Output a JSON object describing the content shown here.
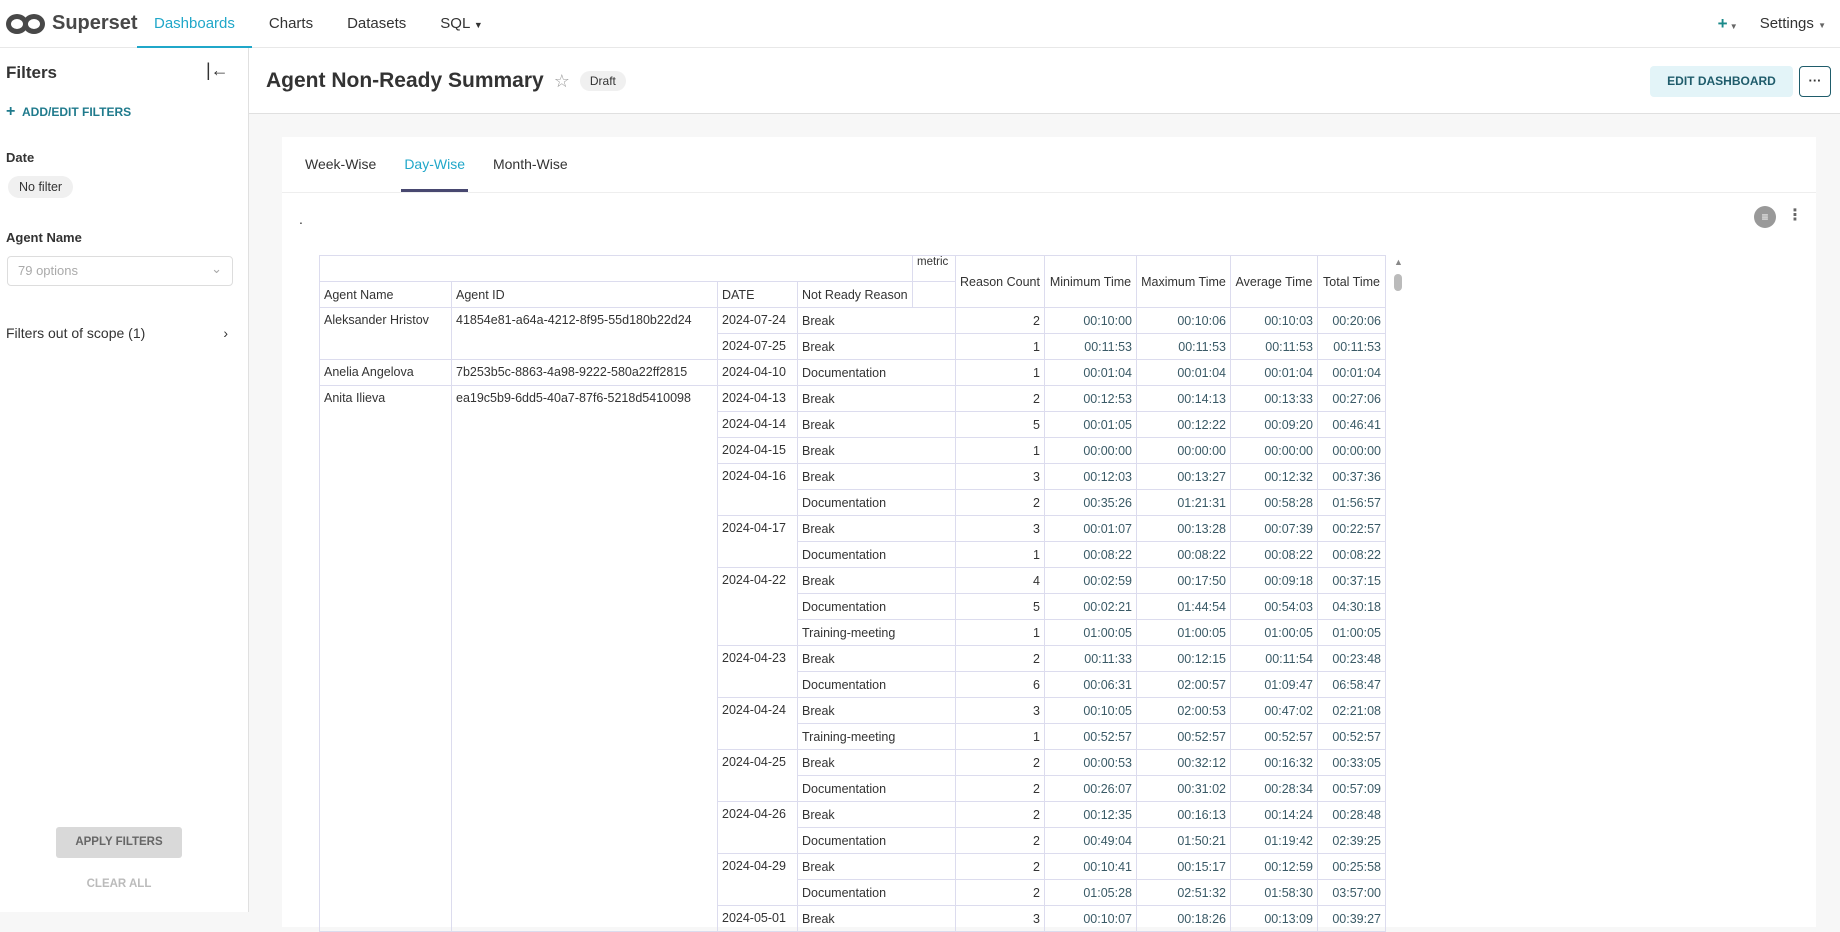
{
  "nav": {
    "brand": "Superset",
    "items": [
      "Dashboards",
      "Charts",
      "Datasets",
      "SQL"
    ],
    "active": "Dashboards",
    "settings": "Settings"
  },
  "sidebar": {
    "title": "Filters",
    "add_edit": "ADD/EDIT FILTERS",
    "date_label": "Date",
    "date_value": "No filter",
    "agent_label": "Agent Name",
    "agent_placeholder": "79 options",
    "out_of_scope": "Filters out of scope (1)",
    "apply": "APPLY FILTERS",
    "clear": "CLEAR ALL"
  },
  "dashboard": {
    "title": "Agent Non-Ready Summary",
    "status": "Draft",
    "edit_button": "EDIT DASHBOARD",
    "more": "···"
  },
  "tabs": {
    "items": [
      "Week-Wise",
      "Day-Wise",
      "Month-Wise"
    ],
    "active": "Day-Wise"
  },
  "chart": {
    "title": ".",
    "metric_label": "metric",
    "row_headers": [
      "Agent Name",
      "Agent ID",
      "DATE",
      "Not Ready Reason"
    ],
    "metric_headers": [
      "Reason Count",
      "Minimum Time",
      "Maximum Time",
      "Average Time",
      "Total Time"
    ],
    "agents": [
      {
        "name": "Aleksander Hristov",
        "id": "41854e81-a64a-4212-8f95-55d180b22d24",
        "dates": [
          {
            "date": "2024-07-24",
            "rows": [
              [
                "Break",
                "2",
                "00:10:00",
                "00:10:06",
                "00:10:03",
                "00:20:06"
              ]
            ]
          },
          {
            "date": "2024-07-25",
            "rows": [
              [
                "Break",
                "1",
                "00:11:53",
                "00:11:53",
                "00:11:53",
                "00:11:53"
              ]
            ]
          }
        ]
      },
      {
        "name": "Anelia Angelova",
        "id": "7b253b5c-8863-4a98-9222-580a22ff2815",
        "dates": [
          {
            "date": "2024-04-10",
            "rows": [
              [
                "Documentation",
                "1",
                "00:01:04",
                "00:01:04",
                "00:01:04",
                "00:01:04"
              ]
            ]
          }
        ]
      },
      {
        "name": "Anita Ilieva",
        "id": "ea19c5b9-6dd5-40a7-87f6-5218d5410098",
        "dates": [
          {
            "date": "2024-04-13",
            "rows": [
              [
                "Break",
                "2",
                "00:12:53",
                "00:14:13",
                "00:13:33",
                "00:27:06"
              ]
            ]
          },
          {
            "date": "2024-04-14",
            "rows": [
              [
                "Break",
                "5",
                "00:01:05",
                "00:12:22",
                "00:09:20",
                "00:46:41"
              ]
            ]
          },
          {
            "date": "2024-04-15",
            "rows": [
              [
                "Break",
                "1",
                "00:00:00",
                "00:00:00",
                "00:00:00",
                "00:00:00"
              ]
            ]
          },
          {
            "date": "2024-04-16",
            "rows": [
              [
                "Break",
                "3",
                "00:12:03",
                "00:13:27",
                "00:12:32",
                "00:37:36"
              ],
              [
                "Documentation",
                "2",
                "00:35:26",
                "01:21:31",
                "00:58:28",
                "01:56:57"
              ]
            ]
          },
          {
            "date": "2024-04-17",
            "rows": [
              [
                "Break",
                "3",
                "00:01:07",
                "00:13:28",
                "00:07:39",
                "00:22:57"
              ],
              [
                "Documentation",
                "1",
                "00:08:22",
                "00:08:22",
                "00:08:22",
                "00:08:22"
              ]
            ]
          },
          {
            "date": "2024-04-22",
            "rows": [
              [
                "Break",
                "4",
                "00:02:59",
                "00:17:50",
                "00:09:18",
                "00:37:15"
              ],
              [
                "Documentation",
                "5",
                "00:02:21",
                "01:44:54",
                "00:54:03",
                "04:30:18"
              ],
              [
                "Training-meeting",
                "1",
                "01:00:05",
                "01:00:05",
                "01:00:05",
                "01:00:05"
              ]
            ]
          },
          {
            "date": "2024-04-23",
            "rows": [
              [
                "Break",
                "2",
                "00:11:33",
                "00:12:15",
                "00:11:54",
                "00:23:48"
              ],
              [
                "Documentation",
                "6",
                "00:06:31",
                "02:00:57",
                "01:09:47",
                "06:58:47"
              ]
            ]
          },
          {
            "date": "2024-04-24",
            "rows": [
              [
                "Break",
                "3",
                "00:10:05",
                "02:00:53",
                "00:47:02",
                "02:21:08"
              ],
              [
                "Training-meeting",
                "1",
                "00:52:57",
                "00:52:57",
                "00:52:57",
                "00:52:57"
              ]
            ]
          },
          {
            "date": "2024-04-25",
            "rows": [
              [
                "Break",
                "2",
                "00:00:53",
                "00:32:12",
                "00:16:32",
                "00:33:05"
              ],
              [
                "Documentation",
                "2",
                "00:26:07",
                "00:31:02",
                "00:28:34",
                "00:57:09"
              ]
            ]
          },
          {
            "date": "2024-04-26",
            "rows": [
              [
                "Break",
                "2",
                "00:12:35",
                "00:16:13",
                "00:14:24",
                "00:28:48"
              ],
              [
                "Documentation",
                "2",
                "00:49:04",
                "01:50:21",
                "01:19:42",
                "02:39:25"
              ]
            ]
          },
          {
            "date": "2024-04-29",
            "rows": [
              [
                "Break",
                "2",
                "00:10:41",
                "00:15:17",
                "00:12:59",
                "00:25:58"
              ],
              [
                "Documentation",
                "2",
                "01:05:28",
                "02:51:32",
                "01:58:30",
                "03:57:00"
              ]
            ]
          },
          {
            "date": "2024-05-01",
            "rows": [
              [
                "Break",
                "3",
                "00:10:07",
                "00:18:26",
                "00:13:09",
                "00:39:27"
              ]
            ]
          }
        ]
      }
    ]
  },
  "colors": {
    "accent": "#20a7c9",
    "primary_dark": "#1f5c6b"
  }
}
